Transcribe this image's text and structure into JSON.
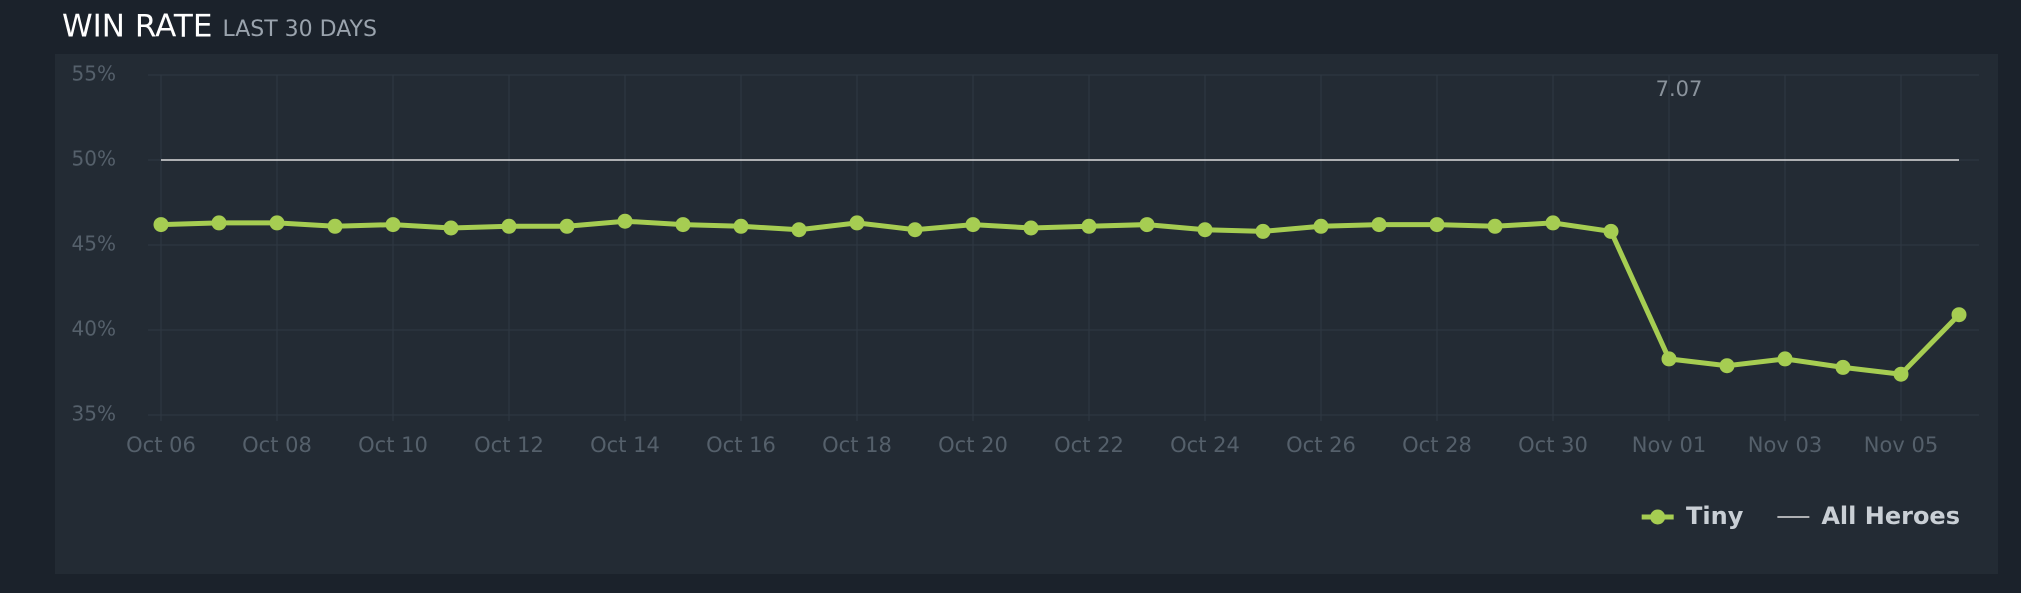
{
  "chart_data": {
    "type": "line",
    "title": "WIN RATE",
    "subtitle": "LAST 30 DAYS",
    "categories": [
      "Oct 06",
      null,
      "Oct 08",
      null,
      "Oct 10",
      null,
      "Oct 12",
      null,
      "Oct 14",
      null,
      "Oct 16",
      null,
      "Oct 18",
      null,
      "Oct 20",
      null,
      "Oct 22",
      null,
      "Oct 24",
      null,
      "Oct 26",
      null,
      "Oct 28",
      null,
      "Oct 30",
      null,
      "Nov 01",
      null,
      "Nov 03",
      null,
      "Nov 05",
      null
    ],
    "series": [
      {
        "name": "Tiny",
        "color": "#a6cd52",
        "values": [
          46.2,
          46.3,
          46.3,
          46.1,
          46.2,
          46.0,
          46.1,
          46.1,
          46.4,
          46.2,
          46.1,
          45.9,
          46.3,
          45.9,
          46.2,
          46.0,
          46.1,
          46.2,
          45.9,
          45.8,
          46.1,
          46.2,
          46.2,
          46.1,
          46.3,
          45.8,
          38.3,
          37.9,
          38.3,
          37.8,
          37.4,
          40.9
        ]
      },
      {
        "name": "All Heroes",
        "color": "#dddddd",
        "values": [
          50,
          50,
          50,
          50,
          50,
          50,
          50,
          50,
          50,
          50,
          50,
          50,
          50,
          50,
          50,
          50,
          50,
          50,
          50,
          50,
          50,
          50,
          50,
          50,
          50,
          50,
          50,
          50,
          50,
          50,
          50,
          50
        ]
      }
    ],
    "annotations": [
      {
        "text": "7.07",
        "category": 26
      }
    ],
    "ylim": [
      35,
      55
    ],
    "yticks": [
      {
        "value": 35,
        "label": "35%"
      },
      {
        "value": 40,
        "label": "40%"
      },
      {
        "value": 45,
        "label": "45%"
      },
      {
        "value": 50,
        "label": "50%"
      },
      {
        "value": 55,
        "label": "55%"
      }
    ],
    "grid": true
  }
}
